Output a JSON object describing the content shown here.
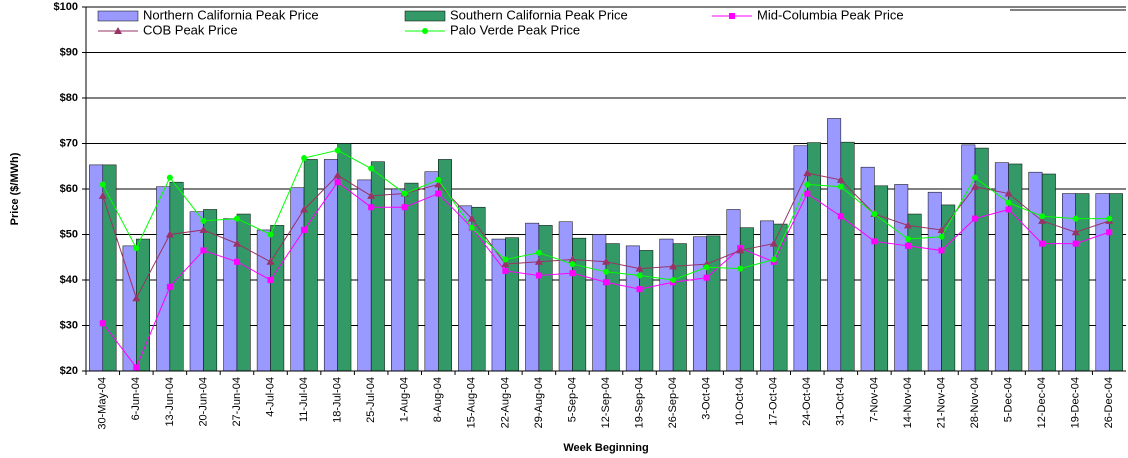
{
  "chart_data": {
    "type": "bar",
    "x_label": "Week Beginning",
    "y_label": "Price ($/MWh)",
    "categories": [
      "30-May-04",
      "6-Jun-04",
      "13-Jun-04",
      "20-Jun-04",
      "27-Jun-04",
      "4-Jul-04",
      "11-Jul-04",
      "18-Jul-04",
      "25-Jul-04",
      "1-Aug-04",
      "8-Aug-04",
      "15-Aug-04",
      "22-Aug-04",
      "29-Aug-04",
      "5-Sep-04",
      "12-Sep-04",
      "19-Sep-04",
      "26-Sep-04",
      "3-Oct-04",
      "10-Oct-04",
      "17-Oct-04",
      "24-Oct-04",
      "31-Oct-04",
      "7-Nov-04",
      "14-Nov-04",
      "21-Nov-04",
      "28-Nov-04",
      "5-Dec-04",
      "12-Dec-04",
      "19-Dec-04",
      "26-Dec-04"
    ],
    "ylim": [
      20,
      100
    ],
    "yticks": [
      {
        "value": 20,
        "label": "$20"
      },
      {
        "value": 30,
        "label": "$30"
      },
      {
        "value": 40,
        "label": "$40"
      },
      {
        "value": 50,
        "label": "$50"
      },
      {
        "value": 60,
        "label": "$60"
      },
      {
        "value": 70,
        "label": "$70"
      },
      {
        "value": 80,
        "label": "$80"
      },
      {
        "value": 90,
        "label": "$90"
      },
      {
        "value": 100,
        "label": "$100"
      }
    ],
    "grid": true,
    "legend": "top",
    "series": [
      {
        "name": "Northern California Peak Price",
        "type": "bar",
        "color": "#9999ff",
        "values": [
          65.3,
          47.5,
          60.5,
          55,
          53.5,
          51,
          60.3,
          66.5,
          62,
          60,
          63.8,
          56.3,
          49,
          52.5,
          52.8,
          50,
          47.5,
          49,
          49.5,
          55.5,
          53,
          69.5,
          75.5,
          64.8,
          61,
          59.3,
          69.7,
          65.8,
          63.7,
          59,
          59
        ]
      },
      {
        "name": "Southern California Peak Price",
        "type": "bar",
        "color": "#339966",
        "values": [
          65.3,
          49,
          61.5,
          55.5,
          54.5,
          52,
          66.5,
          70,
          66,
          61.3,
          66.5,
          56,
          49.3,
          52,
          49.2,
          48,
          46.5,
          48,
          49.7,
          51.5,
          52.3,
          70.2,
          70.3,
          60.7,
          54.5,
          56.5,
          69,
          65.5,
          63.3,
          59,
          59
        ]
      },
      {
        "name": "Mid-Columbia Peak Price",
        "type": "line",
        "marker": "square",
        "color": "#ff00ff",
        "values": [
          30.5,
          20.8,
          38.5,
          46.5,
          44,
          40,
          51,
          61.5,
          56,
          56,
          59,
          51.5,
          42,
          41,
          41.5,
          39.5,
          38,
          39.5,
          40.5,
          47,
          44,
          59,
          54,
          48.5,
          47.5,
          46.5,
          53.5,
          55.5,
          48,
          48,
          50.5
        ]
      },
      {
        "name": "COB Peak Price",
        "type": "line",
        "marker": "triangle",
        "color": "#993366",
        "values": [
          58.5,
          36,
          50,
          51,
          48,
          44,
          55.5,
          63,
          58.5,
          59,
          61,
          53.5,
          43.5,
          44,
          44.5,
          44,
          42.5,
          43,
          43.5,
          46.5,
          48,
          63.5,
          62,
          54.5,
          52,
          51,
          60.5,
          59,
          53,
          50.5,
          53
        ]
      },
      {
        "name": "Palo Verde Peak Price",
        "type": "line",
        "marker": "circle",
        "color": "#00ff00",
        "values": [
          61,
          47,
          62.5,
          53,
          53.5,
          50,
          66.8,
          68.5,
          64.5,
          59,
          62,
          51.5,
          44.5,
          46,
          43.5,
          41.8,
          41,
          40,
          42.8,
          42.5,
          44.5,
          61,
          60.5,
          54.5,
          49,
          49.5,
          62.5,
          57,
          54,
          53.5,
          53.5
        ]
      }
    ]
  }
}
